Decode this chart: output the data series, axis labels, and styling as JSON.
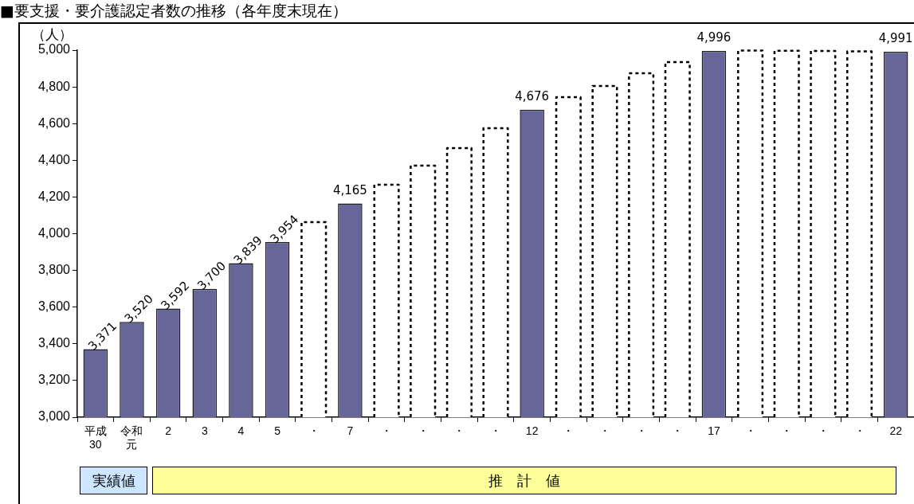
{
  "chart_data": {
    "type": "bar",
    "title": "■要支援・要介護認定者数の推移（各年度末現在）",
    "ylabel": "（人）",
    "categories": [
      "平成30",
      "令和元",
      "2",
      "3",
      "4",
      "5",
      "・",
      "7",
      "・",
      "・",
      "・",
      "・",
      "12",
      "・",
      "・",
      "・",
      "・",
      "17",
      "・",
      "・",
      "・",
      "・",
      "22"
    ],
    "stacked": true,
    "ylim": [
      3000,
      5000
    ],
    "yticks": [
      {
        "value": 3000,
        "label": "3,000"
      },
      {
        "value": 3200,
        "label": "3,200"
      },
      {
        "value": 3400,
        "label": "3,400"
      },
      {
        "value": 3600,
        "label": "3,600"
      },
      {
        "value": 3800,
        "label": "3,800"
      },
      {
        "value": 4000,
        "label": "4,000"
      },
      {
        "value": 4200,
        "label": "4,200"
      },
      {
        "value": 4400,
        "label": "4,400"
      },
      {
        "value": 4600,
        "label": "4,600"
      },
      {
        "value": 4800,
        "label": "4,800"
      },
      {
        "value": 5000,
        "label": "5,000"
      }
    ],
    "grid": false,
    "legend": false,
    "series": [
      {
        "color": "#666699",
        "values": [
          3371,
          3520,
          3592,
          3700,
          3839,
          3954,
          null,
          4165,
          null,
          null,
          null,
          null,
          4676,
          null,
          null,
          null,
          null,
          4996,
          null,
          null,
          null,
          null,
          4991
        ],
        "value_labels": [
          "3,371",
          "3,520",
          "3,592",
          "3,700",
          "3,839",
          "3,954",
          null,
          "4,165",
          null,
          null,
          null,
          null,
          "4,676",
          null,
          null,
          null,
          null,
          "4,996",
          null,
          null,
          null,
          null,
          "4,991"
        ]
      },
      {
        "color": "#ffffff",
        "line_style": "dotted",
        "values": [
          null,
          null,
          null,
          null,
          null,
          null,
          4063,
          null,
          4267,
          4371,
          4466,
          4575,
          null,
          4744,
          4805,
          4874,
          4935,
          null,
          4998,
          4997,
          4996,
          4993,
          null
        ]
      }
    ],
    "annotations": [
      "実績値",
      "推　計　値"
    ]
  }
}
